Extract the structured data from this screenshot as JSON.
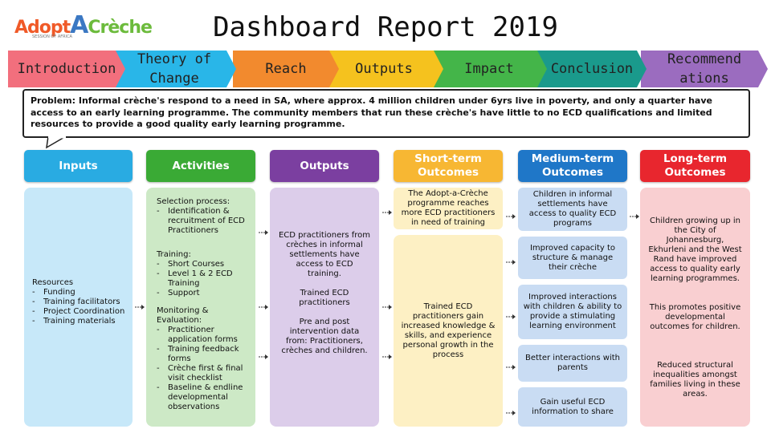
{
  "logo": {
    "part1": "Adopt",
    "part2": "A",
    "part3": "Crèche",
    "subtitle": "SESSION OF AFRICA"
  },
  "title": "Dashboard Report 2019",
  "tabs": [
    {
      "label": "Introduction",
      "color": "#f26f7d"
    },
    {
      "label": "Theory of\nChange",
      "color": "#29b6e8"
    },
    {
      "label": "Reach",
      "color": "#f28a2e"
    },
    {
      "label": "Outputs",
      "color": "#f5c21e"
    },
    {
      "label": "Impact",
      "color": "#44b549"
    },
    {
      "label": "Conclusion",
      "color": "#1a9a8c"
    },
    {
      "label": "Recommend\nations",
      "color": "#9b6cbf"
    }
  ],
  "problem": {
    "label": "Problem:",
    "text": " Informal crèche's respond to a need in SA, where approx.  4 million children under 6yrs live in poverty, and only a quarter have access to an early learning programme. The community members that run these crèche's have little to no ECD qualifications and limited resources to provide a good quality early learning programme."
  },
  "columns": {
    "inputs": {
      "header": "Inputs",
      "color": "#29abe2",
      "body_color": "#c7e8f9",
      "title": "Resources",
      "items": [
        "Funding",
        "Training facilitators",
        "Project Coordination",
        "Training materials"
      ]
    },
    "activities": {
      "header": "Activities",
      "color": "#3aaa35",
      "body_color": "#cde9c6",
      "sections": [
        {
          "title": "Selection process:",
          "items": [
            "Identification & recruitment of ECD Practitioners"
          ]
        },
        {
          "title": "Training:",
          "items": [
            "Short Courses",
            "Level 1 & 2 ECD Training",
            "Support"
          ]
        },
        {
          "title": "Monitoring & Evaluation:",
          "items": [
            "Practitioner application forms",
            "Training feedback forms",
            "Crèche first & final visit checklist",
            "Baseline & endline developmental observations"
          ]
        }
      ]
    },
    "outputs": {
      "header": "Outputs",
      "color": "#7b3fa0",
      "body_color": "#dccdea",
      "items": [
        "ECD practitioners from crèches in informal settlements have access to ECD training.",
        "Trained ECD practitioners",
        "Pre and post intervention data from: Practitioners, crèches and children."
      ]
    },
    "short_term": {
      "header": "Short-term Outcomes",
      "color": "#f7b733",
      "body_color": "#fdf0c4",
      "items": [
        "The Adopt-a-Crèche programme reaches more ECD practitioners in need of training",
        "Trained ECD practitioners gain increased knowledge & skills, and experience personal growth in the process"
      ]
    },
    "medium_term": {
      "header": "Medium-term Outcomes",
      "color": "#1f77c8",
      "body_color": "#c9dcf3",
      "items": [
        "Children in informal settlements have access to quality ECD programs",
        "Improved capacity to structure & manage their crèche",
        "Improved interactions with children & ability to provide a stimulating learning environment",
        "Better interactions with parents",
        "Gain useful ECD information to share"
      ]
    },
    "long_term": {
      "header": "Long-term Outcomes",
      "color": "#e8262e",
      "body_color": "#f9cfd1",
      "items": [
        "Children growing up in the City of Johannesburg, Ekhurleni and the West Rand have improved access to quality early learning programmes.",
        "This promotes positive developmental outcomes for children.",
        "Reduced structural inequalities amongst families living in these areas."
      ]
    }
  }
}
